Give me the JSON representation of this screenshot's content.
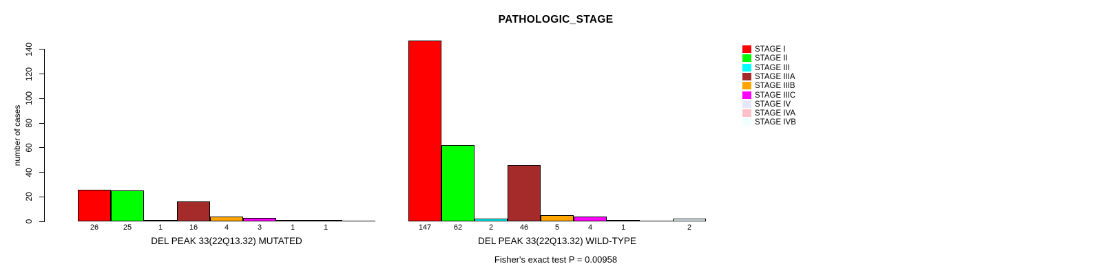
{
  "chart_data": {
    "type": "bar",
    "title": "PATHOLOGIC_STAGE",
    "ylabel": "number of cases",
    "ylim": [
      0,
      140
    ],
    "yticks": [
      0,
      20,
      40,
      60,
      80,
      100,
      120,
      140
    ],
    "grid": false,
    "legend_position": "right",
    "categories": [
      "STAGE I",
      "STAGE II",
      "STAGE III",
      "STAGE IIIA",
      "STAGE IIIB",
      "STAGE IIIC",
      "STAGE IV",
      "STAGE IVA",
      "STAGE IVB"
    ],
    "colors": [
      "#FF0000",
      "#00FF00",
      "#00FFFF",
      "#A52A2A",
      "#FFA500",
      "#FF00FF",
      "#E6E6FA",
      "#FFC0CB",
      "#F0FFFF"
    ],
    "series": [
      {
        "name": "DEL PEAK 33(22Q13.32) MUTATED",
        "values": [
          26,
          25,
          1,
          16,
          4,
          3,
          1,
          1,
          0
        ]
      },
      {
        "name": "DEL PEAK 33(22Q13.32) WILD-TYPE",
        "values": [
          147,
          62,
          2,
          46,
          5,
          4,
          1,
          0,
          2
        ]
      }
    ],
    "footnote": "Fisher's exact test P = 0.00958"
  }
}
